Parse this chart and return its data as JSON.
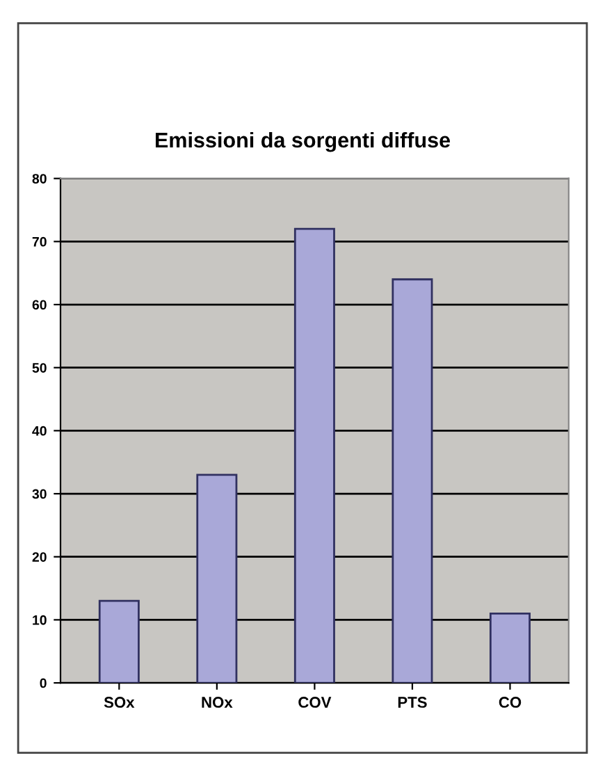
{
  "chart_data": {
    "type": "bar",
    "title": "Emissioni da sorgenti diffuse",
    "categories": [
      "SOx",
      "NOx",
      "COV",
      "PTS",
      "CO"
    ],
    "values": [
      13,
      33,
      72,
      64,
      11
    ],
    "color": "#a9a8d8",
    "ylim": [
      0,
      80
    ],
    "yticks": [
      0,
      10,
      20,
      30,
      40,
      50,
      60,
      70,
      80
    ],
    "grid": "y"
  }
}
